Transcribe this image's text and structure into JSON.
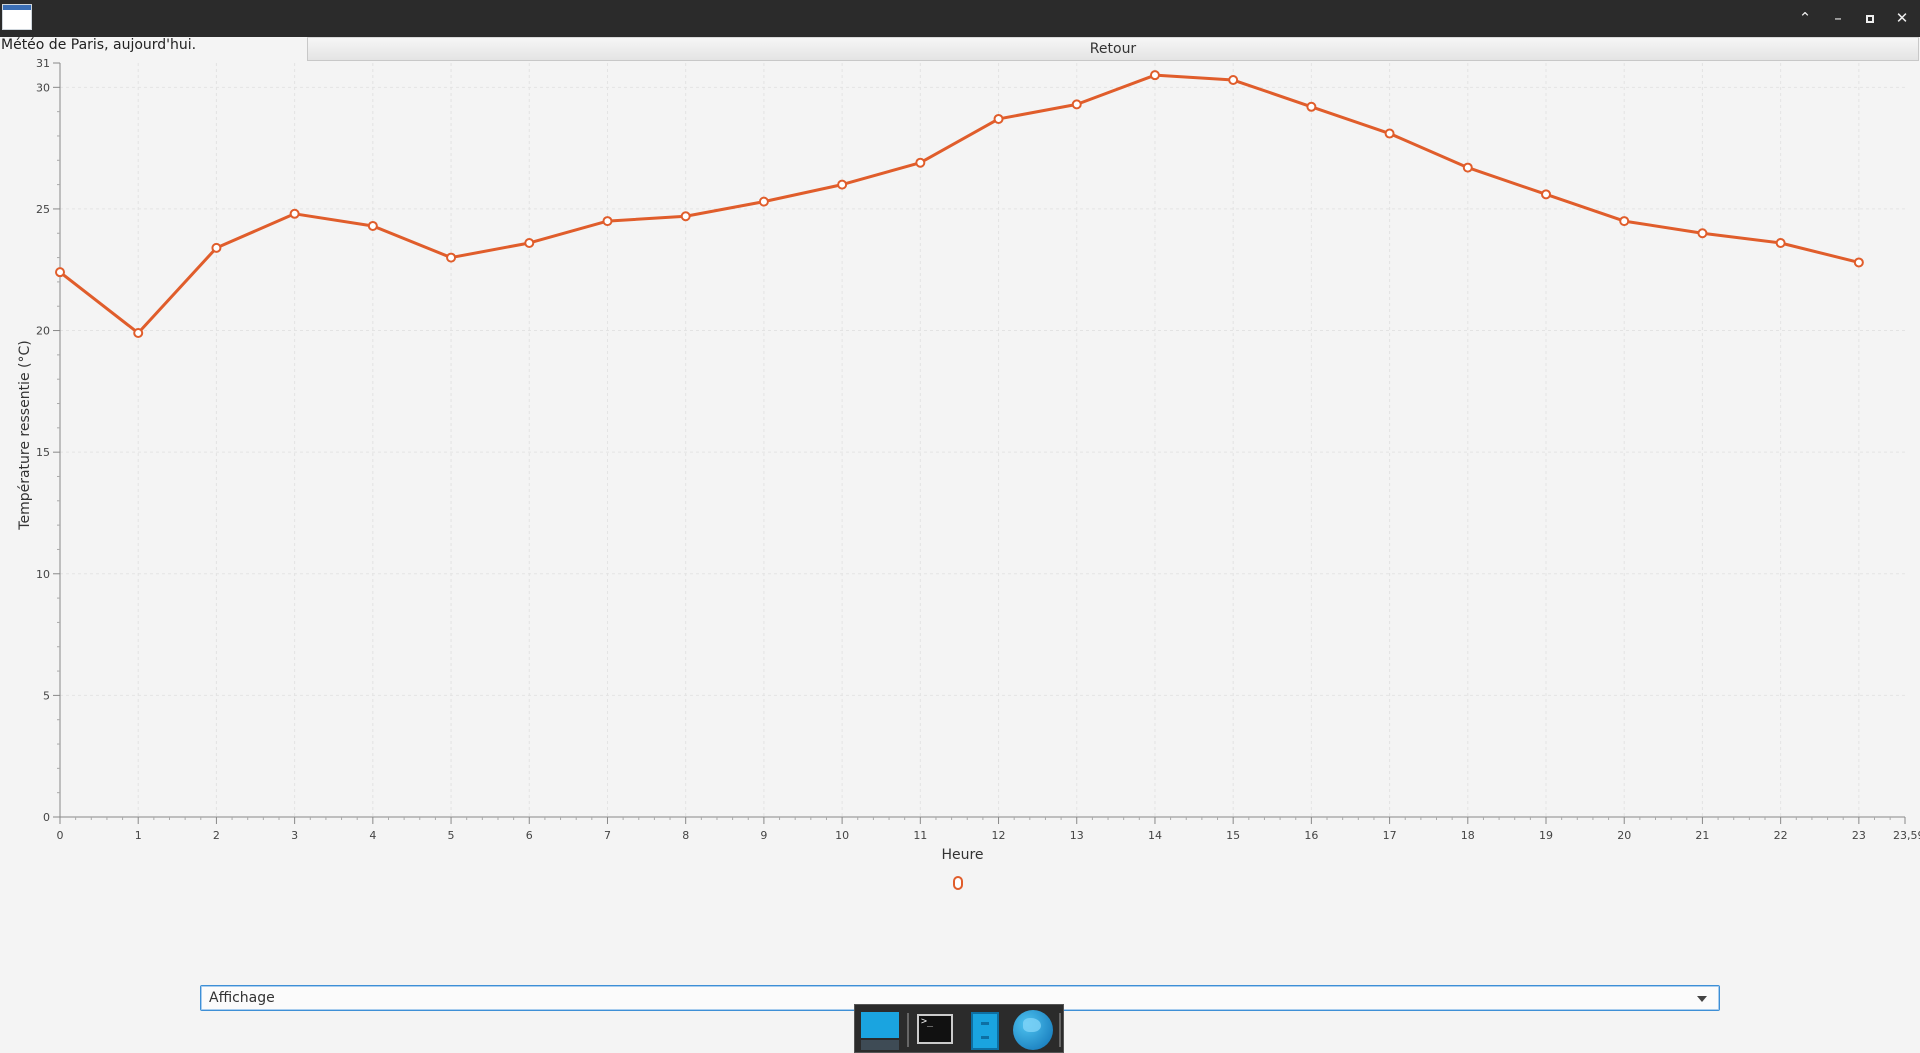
{
  "window": {
    "buttons": [
      {
        "name": "collapse",
        "glyph": "⌃"
      },
      {
        "name": "minimize",
        "glyph": "–"
      },
      {
        "name": "maximize",
        "glyph": ""
      },
      {
        "name": "close",
        "glyph": "✕"
      }
    ]
  },
  "heading": "Météo de Paris, aujourd'hui.",
  "back_button_label": "Retour",
  "chart_data": {
    "type": "line",
    "title": "",
    "xlabel": "Heure",
    "ylabel": "Température ressentie (°C)",
    "xlim": [
      0,
      23.59
    ],
    "ylim": [
      0,
      31
    ],
    "x_tick_labels": [
      "0",
      "1",
      "2",
      "3",
      "4",
      "5",
      "6",
      "7",
      "8",
      "9",
      "10",
      "11",
      "12",
      "13",
      "14",
      "15",
      "16",
      "17",
      "18",
      "19",
      "20",
      "21",
      "22",
      "23",
      "23,59"
    ],
    "y_tick_labels": [
      "0",
      "5",
      "10",
      "15",
      "20",
      "25",
      "30",
      "31"
    ],
    "grid": true,
    "legend_placement": "bottom",
    "color": "#e05d2b",
    "series": [
      {
        "name": "",
        "x": [
          0,
          1,
          2,
          3,
          4,
          5,
          6,
          7,
          8,
          9,
          10,
          11,
          12,
          13,
          14,
          15,
          16,
          17,
          18,
          19,
          20,
          21,
          22,
          23
        ],
        "values": [
          22.4,
          19.9,
          23.4,
          24.8,
          24.3,
          23.0,
          23.6,
          24.5,
          24.7,
          25.3,
          26.0,
          26.9,
          28.7,
          29.3,
          30.5,
          30.3,
          29.2,
          28.1,
          26.7,
          25.6,
          24.5,
          24.0,
          23.6,
          22.8
        ]
      }
    ]
  },
  "legend": {
    "label": "0"
  },
  "select": {
    "value": "Affichage"
  },
  "dock": {
    "items": [
      {
        "name": "desktop-icon"
      },
      {
        "name": "terminal-icon",
        "glyph": ">_"
      },
      {
        "name": "file-manager-icon"
      },
      {
        "name": "web-browser-icon"
      }
    ]
  }
}
